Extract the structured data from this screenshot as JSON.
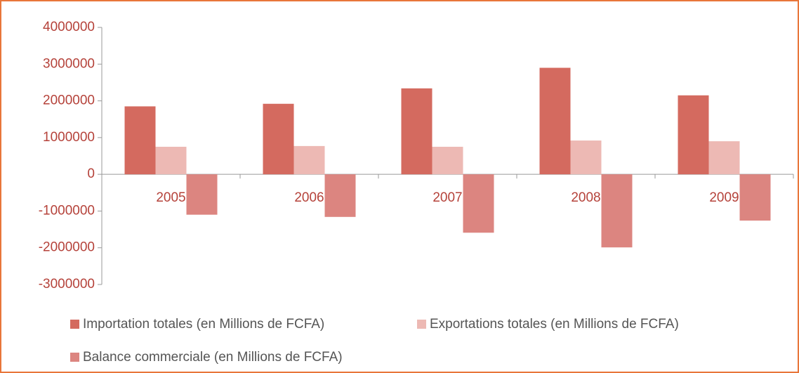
{
  "chart_data": {
    "type": "bar",
    "categories": [
      "2005",
      "2006",
      "2007",
      "2008",
      "2009"
    ],
    "series": [
      {
        "name": "Importation totales (en Millions de FCFA)",
        "color": "#d46a5f",
        "values": [
          1850000,
          1920000,
          2340000,
          2900000,
          2150000
        ]
      },
      {
        "name": "Exportations totales (en Millions de FCFA)",
        "color": "#edb9b4",
        "values": [
          750000,
          770000,
          750000,
          920000,
          900000
        ]
      },
      {
        "name": "Balance commerciale (en Millions de FCFA)",
        "color": "#dc8580",
        "values": [
          -1100000,
          -1160000,
          -1590000,
          -1990000,
          -1260000
        ]
      }
    ],
    "ylim": [
      -3000000,
      4000000
    ],
    "yticks": [
      -3000000,
      -2000000,
      -1000000,
      0,
      1000000,
      2000000,
      3000000,
      4000000
    ],
    "grid": false,
    "legend": "bottom"
  }
}
